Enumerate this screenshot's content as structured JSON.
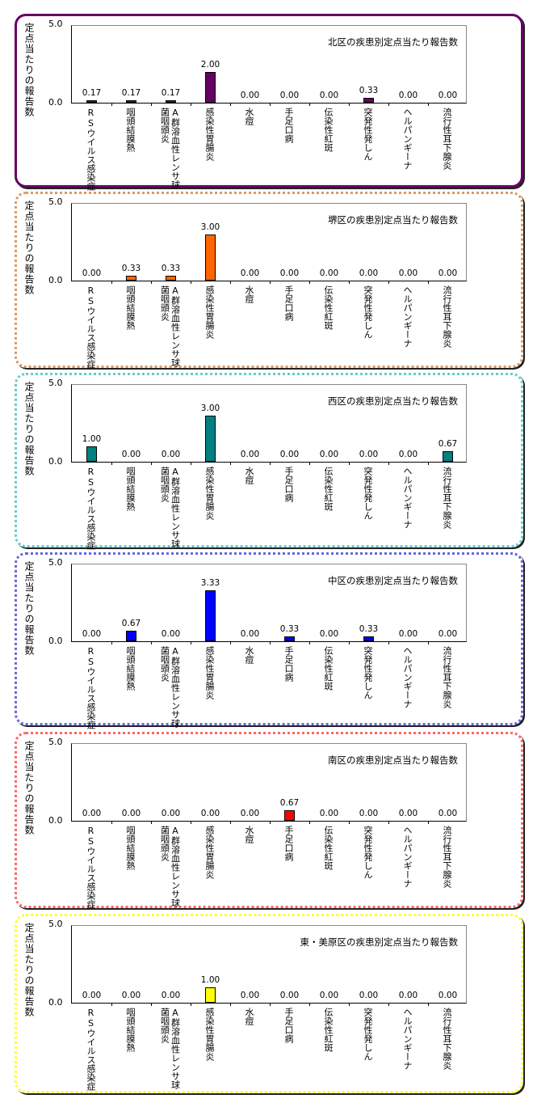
{
  "chart_data": [
    {
      "type": "bar",
      "title": "北区の疾患別定点当たり報告数",
      "ylabel": "定点当たりの報告数",
      "ylim": [
        0,
        5
      ],
      "yticks": [
        "0.0",
        "5.0"
      ],
      "categories": [
        "RSウイルス感染症",
        "咽頭結膜熱",
        "A群溶血性レンサ球菌咽頭炎",
        "感染性胃腸炎",
        "水痘",
        "手足口病",
        "伝染性紅斑",
        "突発性発しん",
        "ヘルパンギーナ",
        "流行性耳下腺炎"
      ],
      "values": [
        0.17,
        0.17,
        0.17,
        2.0,
        0,
        0,
        0,
        0.33,
        0,
        0
      ],
      "labels": [
        "0.17",
        "0.17",
        "0.17",
        "2.00",
        "0.00",
        "0.00",
        "0.00",
        "0.33",
        "0.00",
        "0.00"
      ],
      "bar_color": "#660066",
      "border_color": "#660066"
    },
    {
      "type": "bar",
      "title": "堺区の疾患別定点当たり報告数",
      "ylabel": "定点当たりの報告数",
      "ylim": [
        0,
        5
      ],
      "yticks": [
        "0.0",
        "5.0"
      ],
      "categories": [
        "RSウイルス感染症",
        "咽頭結膜熱",
        "A群溶血性レンサ球菌咽頭炎",
        "感染性胃腸炎",
        "水痘",
        "手足口病",
        "伝染性紅斑",
        "突発性発しん",
        "ヘルパンギーナ",
        "流行性耳下腺炎"
      ],
      "values": [
        0,
        0.33,
        0.33,
        3.0,
        0,
        0,
        0,
        0,
        0,
        0
      ],
      "labels": [
        "0.00",
        "0.33",
        "0.33",
        "3.00",
        "0.00",
        "0.00",
        "0.00",
        "0.00",
        "0.00",
        "0.00"
      ],
      "bar_color": "#ff6600",
      "border_color": "#d99a66"
    },
    {
      "type": "bar",
      "title": "西区の疾患別定点当たり報告数",
      "ylabel": "定点当たりの報告数",
      "ylim": [
        0,
        5
      ],
      "yticks": [
        "0.0",
        "5.0"
      ],
      "categories": [
        "RSウイルス感染症",
        "咽頭結膜熱",
        "A群溶血性レンサ球菌咽頭炎",
        "感染性胃腸炎",
        "水痘",
        "手足口病",
        "伝染性紅斑",
        "突発性発しん",
        "ヘルパンギーナ",
        "流行性耳下腺炎"
      ],
      "values": [
        1.0,
        0,
        0,
        3.0,
        0,
        0,
        0,
        0,
        0,
        0.67
      ],
      "labels": [
        "1.00",
        "0.00",
        "0.00",
        "3.00",
        "0.00",
        "0.00",
        "0.00",
        "0.00",
        "0.00",
        "0.67"
      ],
      "bar_color": "#008080",
      "border_color": "#66cccc"
    },
    {
      "type": "bar",
      "title": "中区の疾患別定点当たり報告数",
      "ylabel": "定点当たりの報告数",
      "ylim": [
        0,
        5
      ],
      "yticks": [
        "0.0",
        "5.0"
      ],
      "categories": [
        "RSウイルス感染症",
        "咽頭結膜熱",
        "A群溶血性レンサ球菌咽頭炎",
        "感染性胃腸炎",
        "水痘",
        "手足口病",
        "伝染性紅斑",
        "突発性発しん",
        "ヘルパンギーナ",
        "流行性耳下腺炎"
      ],
      "values": [
        0,
        0.67,
        0,
        3.33,
        0,
        0.33,
        0,
        0.33,
        0,
        0
      ],
      "labels": [
        "0.00",
        "0.67",
        "0.00",
        "3.33",
        "0.00",
        "0.33",
        "0.00",
        "0.33",
        "0.00",
        "0.00"
      ],
      "bar_color": "#0000ff",
      "border_color": "#6666dd"
    },
    {
      "type": "bar",
      "title": "南区の疾患別定点当たり報告数",
      "ylabel": "定点当たりの報告数",
      "ylim": [
        0,
        5
      ],
      "yticks": [
        "0.0",
        "5.0"
      ],
      "categories": [
        "RSウイルス感染症",
        "咽頭結膜熱",
        "A群溶血性レンサ球菌咽頭炎",
        "感染性胃腸炎",
        "水痘",
        "手足口病",
        "伝染性紅斑",
        "突発性発しん",
        "ヘルパンギーナ",
        "流行性耳下腺炎"
      ],
      "values": [
        0,
        0,
        0,
        0,
        0,
        0.67,
        0,
        0,
        0,
        0
      ],
      "labels": [
        "0.00",
        "0.00",
        "0.00",
        "0.00",
        "0.00",
        "0.67",
        "0.00",
        "0.00",
        "0.00",
        "0.00"
      ],
      "bar_color": "#ff0000",
      "border_color": "#ff6666"
    },
    {
      "type": "bar",
      "title": "東・美原区の疾患別定点当たり報告数",
      "ylabel": "定点当たりの報告数",
      "ylim": [
        0,
        5
      ],
      "yticks": [
        "0.0",
        "5.0"
      ],
      "categories": [
        "RSウイルス感染症",
        "咽頭結膜熱",
        "A群溶血性レンサ球菌咽頭炎",
        "感染性胃腸炎",
        "水痘",
        "手足口病",
        "伝染性紅斑",
        "突発性発しん",
        "ヘルパンギーナ",
        "流行性耳下腺炎"
      ],
      "values": [
        0,
        0,
        0,
        1.0,
        0,
        0,
        0,
        0,
        0,
        0
      ],
      "labels": [
        "0.00",
        "0.00",
        "0.00",
        "1.00",
        "0.00",
        "0.00",
        "0.00",
        "0.00",
        "0.00",
        "0.00"
      ],
      "bar_color": "#ffff00",
      "border_color": "#ffff33"
    }
  ]
}
